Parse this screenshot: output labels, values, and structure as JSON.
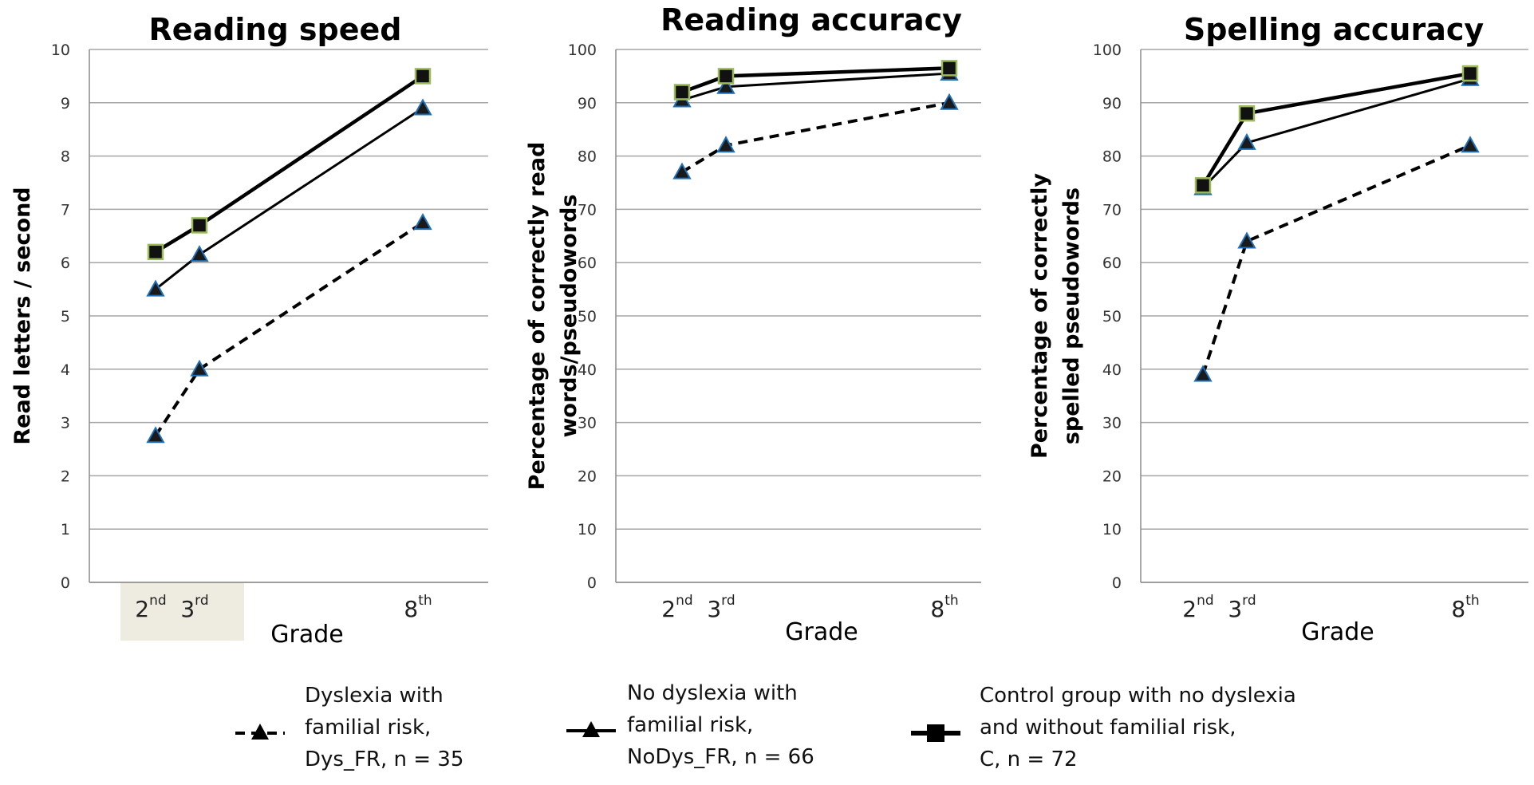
{
  "chart_data": [
    {
      "type": "line",
      "title": "Reading speed",
      "xlabel": "Grade",
      "ylabel": "Read letters / second",
      "ylim": [
        0,
        10
      ],
      "yticks": [
        "0",
        "1",
        "2",
        "3",
        "4",
        "5",
        "6",
        "7",
        "8",
        "9",
        "10"
      ],
      "grid": true,
      "x": [
        2,
        3,
        8
      ],
      "x_tick_labels": [
        {
          "base": "2",
          "sup": "nd"
        },
        {
          "base": "3",
          "sup": "rd"
        },
        {
          "base": "8",
          "sup": "th"
        }
      ],
      "series": [
        {
          "key": "dys_fr",
          "values": [
            2.75,
            4.0,
            6.75
          ]
        },
        {
          "key": "nodys_fr",
          "values": [
            5.5,
            6.15,
            8.9
          ]
        },
        {
          "key": "control",
          "values": [
            6.2,
            6.7,
            9.5
          ]
        }
      ]
    },
    {
      "type": "line",
      "title": "Reading accuracy",
      "xlabel": "Grade",
      "ylabel": "Percentage of correctly read words/pseudowords",
      "ylim": [
        0,
        100
      ],
      "yticks": [
        "0",
        "10",
        "20",
        "30",
        "40",
        "50",
        "60",
        "70",
        "80",
        "90",
        "100"
      ],
      "grid": true,
      "x": [
        2,
        3,
        8
      ],
      "x_tick_labels": [
        {
          "base": "2",
          "sup": "nd"
        },
        {
          "base": "3",
          "sup": "rd"
        },
        {
          "base": "8",
          "sup": "th"
        }
      ],
      "series": [
        {
          "key": "dys_fr",
          "values": [
            77,
            82,
            90
          ]
        },
        {
          "key": "nodys_fr",
          "values": [
            90.5,
            93,
            95.5
          ]
        },
        {
          "key": "control",
          "values": [
            92,
            95,
            96.5
          ]
        }
      ]
    },
    {
      "type": "line",
      "title": "Spelling accuracy",
      "xlabel": "Grade",
      "ylabel": "Percentage of correctly spelled pseudowords",
      "ylim": [
        0,
        100
      ],
      "yticks": [
        "0",
        "10",
        "20",
        "30",
        "40",
        "50",
        "60",
        "70",
        "80",
        "90",
        "100"
      ],
      "grid": true,
      "x": [
        2,
        3,
        8
      ],
      "x_tick_labels": [
        {
          "base": "2",
          "sup": "nd"
        },
        {
          "base": "3",
          "sup": "rd"
        },
        {
          "base": "8",
          "sup": "th"
        }
      ],
      "series": [
        {
          "key": "dys_fr",
          "values": [
            39,
            64,
            82
          ]
        },
        {
          "key": "nodys_fr",
          "values": [
            74,
            82.5,
            94.5
          ]
        },
        {
          "key": "control",
          "values": [
            74.5,
            88,
            95.5
          ]
        }
      ]
    }
  ],
  "legend": {
    "placement": "bottom",
    "items": [
      {
        "key": "dys_fr",
        "lines": [
          "Dyslexia with",
          "familial risk,",
          "Dys_FR, n = 35"
        ],
        "style": "dashed",
        "marker": "triangle"
      },
      {
        "key": "nodys_fr",
        "lines": [
          "No dyslexia with",
          "familial risk,",
          "NoDys_FR, n = 66"
        ],
        "style": "solid",
        "marker": "triangle"
      },
      {
        "key": "control",
        "lines": [
          "Control group with no dyslexia",
          "and without familial risk,",
          "C, n = 72"
        ],
        "style": "solid",
        "marker": "square"
      }
    ]
  },
  "colors": {
    "line": "#000000",
    "triangle_fill": "#1a1a1a",
    "triangle_stroke": "#1f6fb8",
    "square_fill": "#111111",
    "square_stroke": "#9bbb59",
    "grid": "#a6a6a6",
    "axis": "#8c8c8c",
    "highlight": "#eeece1"
  }
}
